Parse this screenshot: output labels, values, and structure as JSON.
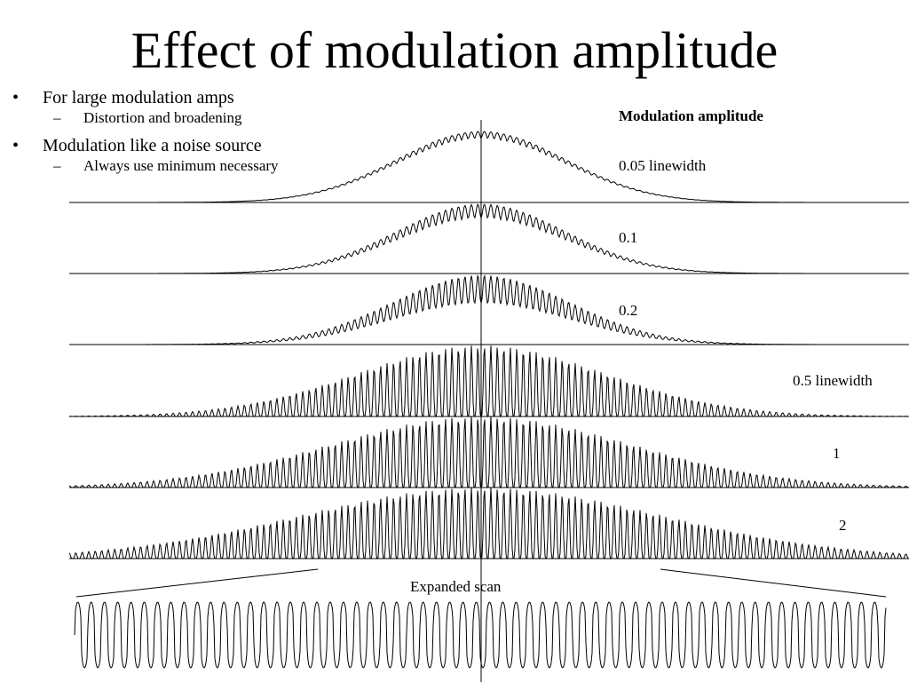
{
  "title": "Effect of modulation amplitude",
  "bullets": [
    {
      "text": "For large modulation amps",
      "sub": "Distortion and broadening"
    },
    {
      "text": "Modulation like a noise source",
      "sub": "Always use minimum necessary"
    }
  ],
  "legend_title": "Modulation amplitude",
  "traces": [
    {
      "label": "0.05 linewidth",
      "amplitude": 0.05
    },
    {
      "label": "0.1",
      "amplitude": 0.1
    },
    {
      "label": "0.2",
      "amplitude": 0.2
    },
    {
      "label": "0.5 linewidth",
      "amplitude": 0.5
    },
    {
      "label": "1",
      "amplitude": 1
    },
    {
      "label": "2",
      "amplitude": 2
    }
  ],
  "expanded_label": "Expanded scan",
  "bullet_glyph": "•",
  "dash_glyph": "–",
  "colors": {
    "trace": "#000000",
    "background": "#ffffff"
  }
}
